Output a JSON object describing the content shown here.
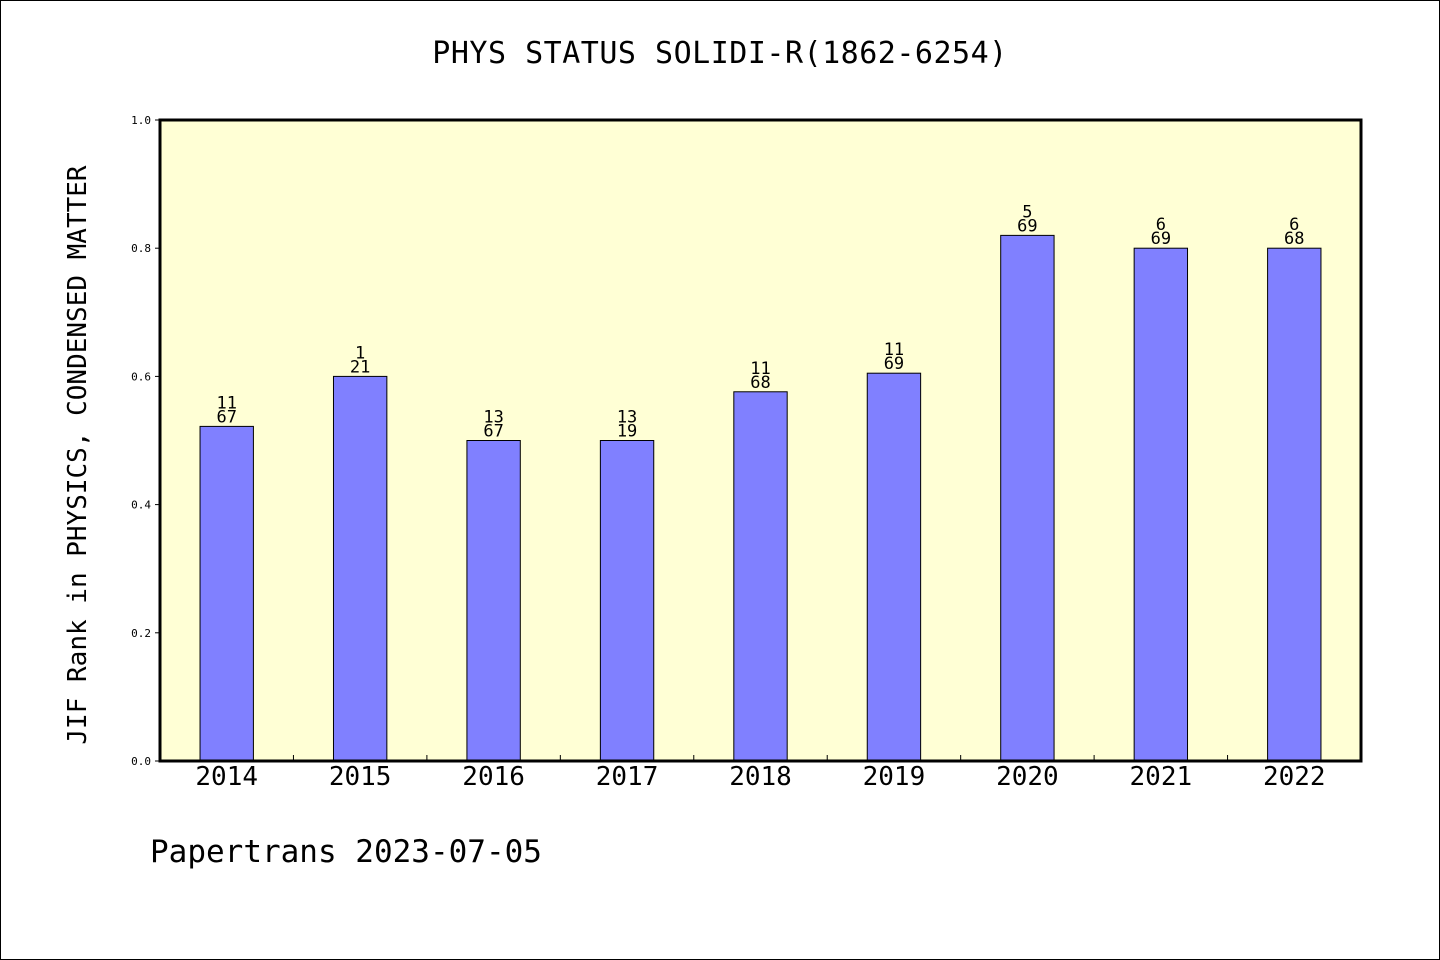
{
  "chart_data": {
    "type": "bar",
    "title": "PHYS STATUS SOLIDI-R(1862-6254)",
    "ylabel": "JIF Rank in PHYSICS, CONDENSED MATTER",
    "xlabel": "",
    "categories": [
      "2014",
      "2015",
      "2016",
      "2017",
      "2018",
      "2019",
      "2020",
      "2021",
      "2022"
    ],
    "values": [
      0.522,
      0.6,
      0.5,
      0.5,
      0.576,
      0.605,
      0.82,
      0.8,
      0.8
    ],
    "labels": [
      [
        "11",
        "67"
      ],
      [
        "1",
        "21"
      ],
      [
        "13",
        "67"
      ],
      [
        "13",
        "19"
      ],
      [
        "11",
        "68"
      ],
      [
        "11",
        "69"
      ],
      [
        "5",
        "69"
      ],
      [
        "6",
        "69"
      ],
      [
        "6",
        "68"
      ]
    ],
    "ylim": [
      0,
      1.0
    ],
    "yticks": [
      "0.0",
      "0.2",
      "0.4",
      "0.6",
      "0.8",
      "1.0"
    ],
    "grid": false,
    "colors": {
      "plot_background": "#FFFFD5",
      "bar_fill": "#8080FF",
      "bar_stroke": "#000000"
    }
  },
  "footer": {
    "text": "Papertrans 2023-07-05"
  }
}
